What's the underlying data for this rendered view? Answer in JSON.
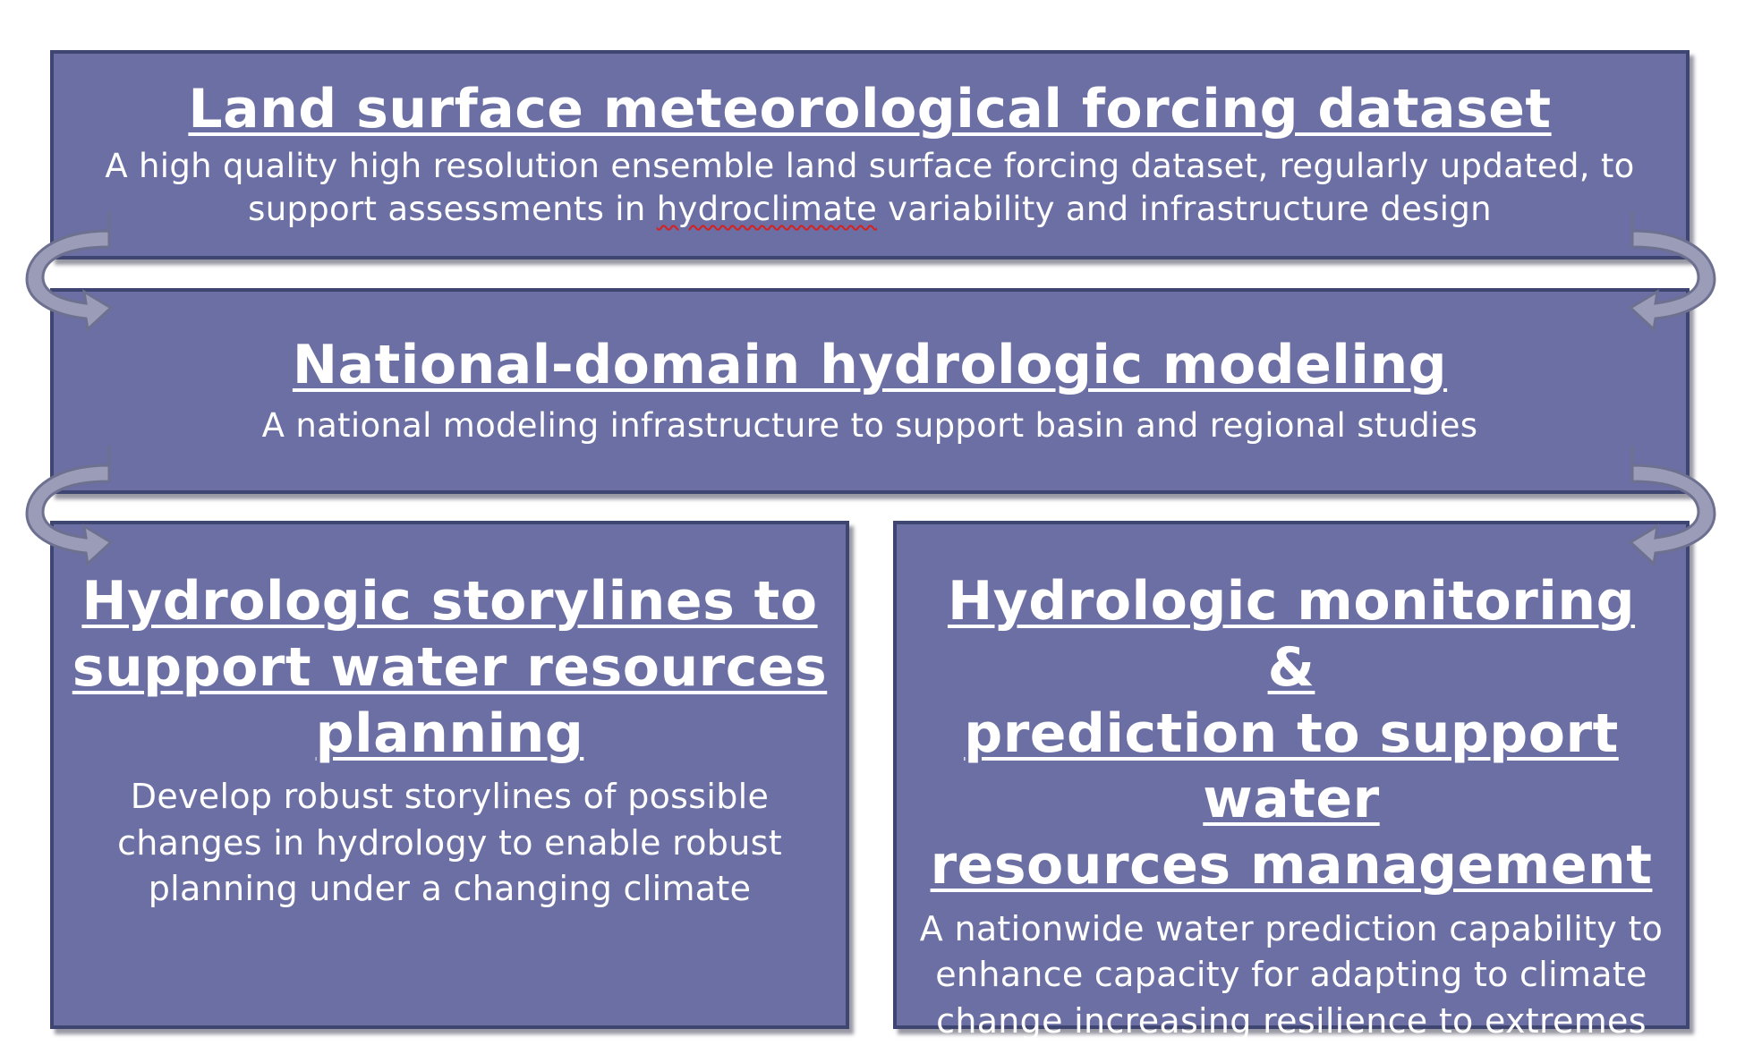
{
  "colors": {
    "box_fill": "#6b6fa3",
    "box_border": "#3f4571",
    "text": "#ffffff",
    "arrow_fill": "#9a9cb8",
    "arrow_stroke": "#6e7090",
    "spellcheck_underline": "#d72020"
  },
  "boxes": {
    "forcing": {
      "title": "Land surface meteorological forcing dataset",
      "desc_line1": "A high quality high resolution ensemble land surface forcing dataset, regularly updated, to",
      "desc_line2_before": "support assessments in ",
      "desc_line2_flagged": "hydroclimate",
      "desc_line2_after": " variability and infrastructure design"
    },
    "national": {
      "title": "National-domain hydrologic modeling",
      "desc": "A national modeling infrastructure to support basin and regional studies"
    },
    "storylines": {
      "title_line1": "Hydrologic storylines to",
      "title_line2": "support water resources",
      "title_line3": "planning",
      "desc_line1": "Develop robust storylines of possible",
      "desc_line2": "changes in hydrology to enable robust",
      "desc_line3": "planning under a changing climate"
    },
    "monitoring": {
      "title_line1": "Hydrologic monitoring &",
      "title_line2": "prediction to support water",
      "title_line3": "resources management",
      "desc_line1": "A nationwide water prediction capability to",
      "desc_line2": "enhance capacity for adapting to climate",
      "desc_line3": "change increasing resilience to extremes"
    }
  },
  "arrows": [
    {
      "name": "left-arrow-forcing-to-national",
      "side": "left",
      "direction": "down"
    },
    {
      "name": "right-arrow-forcing-to-national",
      "side": "right",
      "direction": "down"
    },
    {
      "name": "left-arrow-national-to-storylines",
      "side": "left",
      "direction": "down"
    },
    {
      "name": "right-arrow-national-to-monitoring",
      "side": "right",
      "direction": "down"
    }
  ]
}
